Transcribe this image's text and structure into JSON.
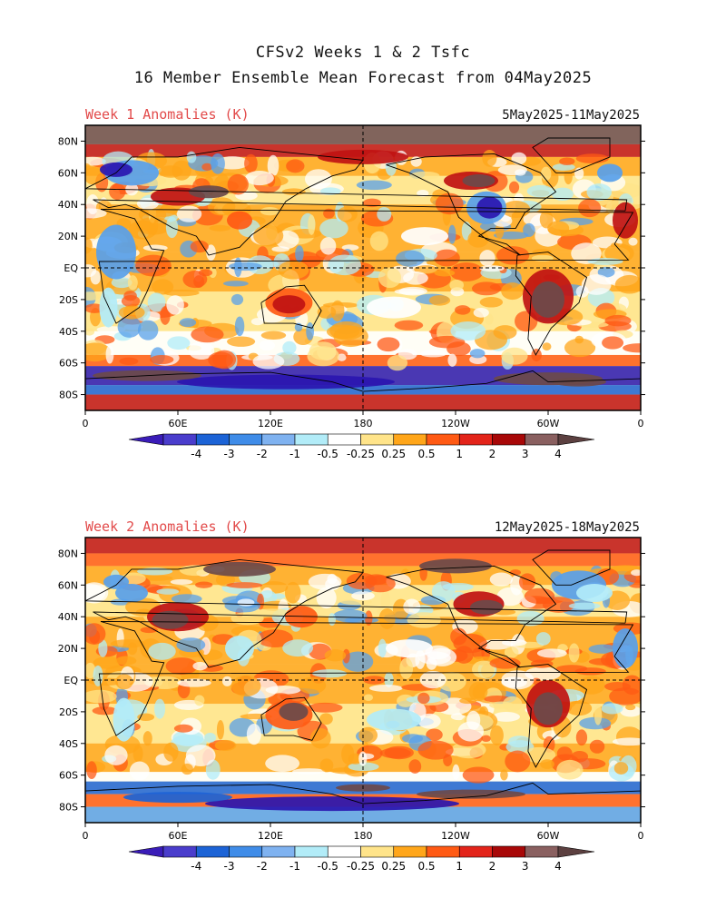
{
  "title": {
    "line1": "CFSv2 Weeks 1 & 2 Tsfc",
    "line2": "16 Member Ensemble Mean Forecast from 04May2025"
  },
  "panels": [
    {
      "label": "Week 1 Anomalies (K)",
      "date_range": "5May2025-11May2025"
    },
    {
      "label": "Week 2 Anomalies (K)",
      "date_range": "12May2025-18May2025"
    }
  ],
  "lat_labels": [
    "80N",
    "60N",
    "40N",
    "20N",
    "EQ",
    "20S",
    "40S",
    "60S",
    "80S"
  ],
  "lon_labels": [
    "0",
    "60E",
    "120E",
    "180",
    "120W",
    "60W",
    "0"
  ],
  "colorbar": {
    "tick_labels": [
      "-4",
      "-3",
      "-2",
      "-1",
      "-0.5",
      "-0.25",
      "0.25",
      "0.5",
      "1",
      "2",
      "3",
      "4"
    ],
    "colors": [
      "#3a1cb8",
      "#4a3dcc",
      "#1c63d6",
      "#3f8ce8",
      "#7fb2f0",
      "#b2ecf8",
      "#ffffff",
      "#ffe48a",
      "#ffa61a",
      "#ff5a14",
      "#e3241a",
      "#a80808",
      "#8a6060",
      "#5c4040"
    ]
  },
  "anomaly_colors": {
    "strong_cold": "#2a16b0",
    "cold": "#1c63d6",
    "cool": "#58a0ea",
    "slight_cool": "#b2ecf8",
    "neutral": "#ffffff",
    "slight_warm": "#ffe48a",
    "warm": "#ffa61a",
    "hot": "#ff5a14",
    "very_hot": "#c01212",
    "extreme": "#6b4a4a"
  }
}
